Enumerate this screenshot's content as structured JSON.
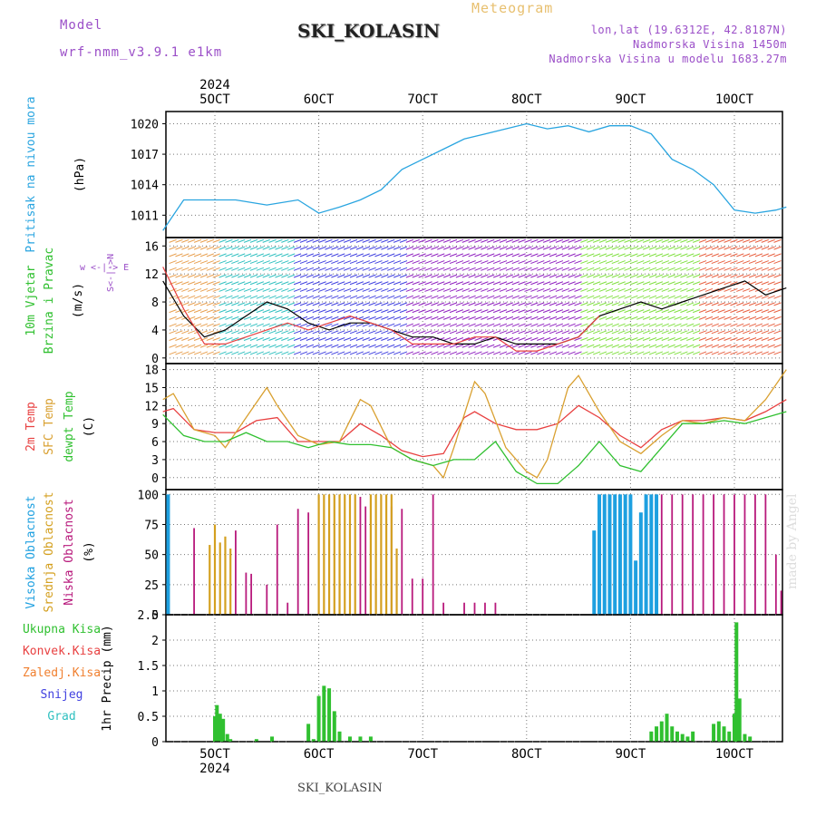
{
  "header": {
    "model_label": "Model",
    "model_value": "wrf-nmm_v3.9.1 e1km",
    "title": "Meteogram",
    "station": "SKI_KOLASIN",
    "lonlat": "lon,lat (19.6312E, 42.8187N)",
    "altitude": "Nadmorska Visina 1450m",
    "model_altitude": "Nadmorska Visina u modelu 1683.27m"
  },
  "footer": {
    "station": "SKI_KOLASIN",
    "credit": "made by Angel"
  },
  "colors": {
    "pressure": "#2aa5e0",
    "speed": "#000000",
    "t2m": "#e84040",
    "sfc": "#d9a030",
    "dewpt": "#30c030",
    "high": "#1ea0e0",
    "mid": "#d4a020",
    "low": "#b81a7c",
    "precip": "#30c030",
    "conv": "#e84040",
    "frz": "#f08030",
    "snow": "#4040e0",
    "hail": "#30c0c0"
  },
  "chart_data": {
    "type": "line",
    "x_dates": [
      "5OCT",
      "6OCT",
      "7OCT",
      "8OCT",
      "9OCT",
      "10OCT"
    ],
    "year_label": "2024",
    "panels": [
      {
        "id": "pressure",
        "ylabels": [
          {
            "text": "Pritisak na nivou mora",
            "color": "#2aa5e0"
          },
          {
            "text": "(hPa)",
            "color": "#000000"
          }
        ],
        "ylim": [
          1008.8,
          1021.2
        ],
        "ticks": [
          1011,
          1014,
          1017,
          1020
        ],
        "series": [
          {
            "color": "#2aa5e0",
            "x": [
              4.5,
              4.7,
              5.0,
              5.2,
              5.5,
              5.8,
              6.0,
              6.2,
              6.4,
              6.6,
              6.8,
              7.0,
              7.2,
              7.4,
              7.6,
              7.8,
              8.0,
              8.2,
              8.4,
              8.6,
              8.8,
              9.0,
              9.2,
              9.4,
              9.6,
              9.8,
              10.0,
              10.2,
              10.4,
              10.5
            ],
            "y": [
              1009.5,
              1012.5,
              1012.5,
              1012.5,
              1012,
              1012.5,
              1011.2,
              1011.8,
              1012.5,
              1013.5,
              1015.5,
              1016.5,
              1017.5,
              1018.5,
              1019,
              1019.5,
              1020,
              1019.5,
              1019.8,
              1019.2,
              1019.8,
              1019.8,
              1019,
              1016.5,
              1015.5,
              1014,
              1011.5,
              1011.2,
              1011.5,
              1011.8
            ]
          }
        ]
      },
      {
        "id": "wind",
        "ylabels": [
          {
            "text": "10m Vjetar",
            "color": "#30c030"
          },
          {
            "text": "Brzina i Pravac",
            "color": "#30c030"
          },
          {
            "text": "(m/s)",
            "color": "#000000"
          }
        ],
        "compass": "w <-|-> E",
        "compass_ns": "S<-|->N",
        "ylim": [
          -0.8,
          17.2
        ],
        "ticks": [
          0,
          4,
          8,
          12,
          16
        ],
        "series": [
          {
            "color": "#000000",
            "x": [
              4.5,
              4.7,
              4.9,
              5.1,
              5.3,
              5.5,
              5.7,
              5.9,
              6.1,
              6.3,
              6.5,
              6.7,
              6.9,
              7.1,
              7.3,
              7.5,
              7.7,
              7.9,
              8.1,
              8.3,
              8.5,
              8.7,
              8.9,
              9.1,
              9.3,
              9.5,
              9.7,
              9.9,
              10.1,
              10.3,
              10.5
            ],
            "y": [
              11,
              6,
              3,
              4,
              6,
              8,
              7,
              5,
              4,
              5,
              5,
              4,
              3,
              3,
              2,
              2,
              3,
              2,
              2,
              2,
              3,
              6,
              7,
              8,
              7,
              8,
              9,
              10,
              11,
              9,
              10
            ]
          },
          {
            "color": "#e84040",
            "x": [
              4.5,
              4.7,
              4.9,
              5.1,
              5.3,
              5.5,
              5.7,
              5.9,
              6.1,
              6.3,
              6.5,
              6.7,
              6.9,
              7.1,
              7.3,
              7.5,
              7.7,
              7.9,
              8.1,
              8.3,
              8.5,
              8.7
            ],
            "y": [
              13,
              7,
              2,
              2,
              3,
              4,
              5,
              4,
              5,
              6,
              5,
              4,
              2,
              2,
              2,
              3,
              3,
              1,
              1,
              2,
              3,
              6
            ]
          }
        ]
      },
      {
        "id": "temperature",
        "ylabels": [
          {
            "text": "2m Temp",
            "color": "#e84040"
          },
          {
            "text": "SFC Temp",
            "color": "#d9a030"
          },
          {
            "text": "dewpt Temp",
            "color": "#30c030"
          },
          {
            "text": "(C)",
            "color": "#000000"
          }
        ],
        "ylim": [
          -2,
          19
        ],
        "ticks": [
          0,
          3,
          6,
          9,
          12,
          15,
          18
        ],
        "series": [
          {
            "name": "2m Temp",
            "color": "#e84040",
            "x": [
              4.5,
              4.6,
              4.8,
              5.0,
              5.2,
              5.4,
              5.6,
              5.8,
              6.0,
              6.2,
              6.4,
              6.6,
              6.8,
              7.0,
              7.2,
              7.4,
              7.5,
              7.7,
              7.9,
              8.1,
              8.3,
              8.5,
              8.7,
              8.9,
              9.1,
              9.3,
              9.5,
              9.7,
              9.9,
              10.1,
              10.3,
              10.5
            ],
            "y": [
              11,
              11.5,
              8,
              7.5,
              7.5,
              9.5,
              10,
              6,
              6,
              6,
              9,
              7,
              4.5,
              3.5,
              4,
              10,
              11,
              9,
              8,
              8,
              9,
              12,
              10,
              7,
              5,
              8,
              9.5,
              9.5,
              10,
              9.5,
              11,
              13
            ]
          },
          {
            "name": "SFC Temp",
            "color": "#d9a030",
            "x": [
              4.5,
              4.6,
              4.8,
              5.0,
              5.1,
              5.3,
              5.5,
              5.6,
              5.8,
              6.0,
              6.2,
              6.4,
              6.5,
              6.7,
              6.9,
              7.1,
              7.2,
              7.3,
              7.5,
              7.6,
              7.8,
              8.0,
              8.1,
              8.2,
              8.4,
              8.5,
              8.7,
              8.9,
              9.1,
              9.3,
              9.5,
              9.7,
              9.9,
              10.1,
              10.3,
              10.5
            ],
            "y": [
              13,
              14,
              8,
              7,
              5,
              10,
              15,
              12,
              7,
              5.5,
              6,
              13,
              12,
              5,
              3,
              2,
              0,
              5,
              16,
              14,
              5,
              1,
              0,
              3,
              15,
              17,
              11,
              6,
              4,
              7,
              9.5,
              9,
              10,
              9.5,
              13,
              18
            ]
          },
          {
            "name": "dewpt Temp",
            "color": "#30c030",
            "x": [
              4.5,
              4.7,
              4.9,
              5.1,
              5.3,
              5.5,
              5.7,
              5.9,
              6.1,
              6.3,
              6.5,
              6.7,
              6.9,
              7.1,
              7.3,
              7.5,
              7.7,
              7.9,
              8.1,
              8.3,
              8.5,
              8.7,
              8.9,
              9.1,
              9.3,
              9.5,
              9.7,
              9.9,
              10.1,
              10.3,
              10.5
            ],
            "y": [
              10.5,
              7,
              6,
              6,
              7.5,
              6,
              6,
              5,
              6,
              5.5,
              5.5,
              5,
              3,
              2,
              3,
              3,
              6,
              1,
              -1,
              -1,
              2,
              6,
              2,
              1,
              5,
              9,
              9,
              9.5,
              9,
              10,
              11
            ]
          }
        ]
      },
      {
        "id": "cloud",
        "ylabels": [
          {
            "text": "Visoka Oblacnost",
            "color": "#1ea0e0"
          },
          {
            "text": "Srednja Oblacnost",
            "color": "#d4a020"
          },
          {
            "text": "Niska Oblacnost",
            "color": "#b81a7c"
          },
          {
            "text": "(%)",
            "color": "#000000"
          }
        ],
        "ylim": [
          0,
          104
        ],
        "ticks": [
          0,
          25,
          50,
          75,
          100
        ],
        "high": {
          "x": [
            4.55,
            8.65,
            8.7,
            8.75,
            8.8,
            8.85,
            8.9,
            8.95,
            9.0,
            9.05,
            9.1,
            9.15,
            9.2,
            9.25
          ],
          "y": [
            100,
            70,
            100,
            100,
            100,
            100,
            100,
            100,
            100,
            45,
            85,
            100,
            100,
            100
          ]
        },
        "mid": {
          "x": [
            4.95,
            5.0,
            5.05,
            5.1,
            5.15,
            6.0,
            6.05,
            6.1,
            6.15,
            6.2,
            6.25,
            6.3,
            6.35,
            6.5,
            6.55,
            6.6,
            6.65,
            6.7,
            6.75
          ],
          "y": [
            58,
            75,
            60,
            65,
            55,
            100,
            100,
            100,
            100,
            100,
            100,
            100,
            100,
            100,
            100,
            100,
            100,
            100,
            55
          ]
        },
        "low": {
          "x": [
            4.8,
            5.2,
            5.3,
            5.35,
            5.5,
            5.6,
            5.7,
            5.8,
            5.9,
            6.4,
            6.45,
            6.55,
            6.7,
            6.8,
            6.9,
            7.0,
            7.1,
            7.2,
            7.4,
            7.5,
            7.6,
            7.7,
            9.3,
            9.4,
            9.5,
            9.6,
            9.7,
            9.8,
            9.9,
            10.0,
            10.1,
            10.2,
            10.3,
            10.4,
            10.45
          ],
          "y": [
            72,
            70,
            35,
            34,
            25,
            75,
            10,
            88,
            85,
            98,
            90,
            30,
            90,
            88,
            30,
            30,
            100,
            10,
            10,
            10,
            10,
            10,
            100,
            100,
            100,
            100,
            100,
            100,
            100,
            100,
            100,
            100,
            100,
            50,
            20
          ]
        }
      },
      {
        "id": "precip",
        "ylabels": [
          {
            "text": "1hr Precip (mm)",
            "color": "#000000"
          }
        ],
        "legend": [
          {
            "text": "Ukupna Kisa",
            "color": "#30c030"
          },
          {
            "text": "Konvek.Kisa",
            "color": "#e84040"
          },
          {
            "text": "Zaledj.Kisa",
            "color": "#f08030"
          },
          {
            "text": "Snijeg",
            "color": "#4040e0"
          },
          {
            "text": "Grad",
            "color": "#30c0c0"
          }
        ],
        "ylim": [
          0,
          2.5
        ],
        "ticks": [
          0,
          0.5,
          1,
          1.5,
          2,
          2.5
        ],
        "ticklabels": [
          "0",
          "0.5",
          "1",
          "1.5",
          "2",
          "2.5"
        ],
        "bars": {
          "x": [
            5.0,
            5.02,
            5.05,
            5.08,
            5.12,
            5.15,
            5.4,
            5.55,
            5.9,
            5.95,
            6.0,
            6.05,
            6.1,
            6.15,
            6.2,
            6.3,
            6.4,
            6.5,
            9.2,
            9.25,
            9.3,
            9.35,
            9.4,
            9.45,
            9.5,
            9.55,
            9.6,
            9.8,
            9.85,
            9.9,
            9.95,
            10.0,
            10.02,
            10.05,
            10.1,
            10.15
          ],
          "y": [
            0.5,
            0.72,
            0.55,
            0.45,
            0.15,
            0.05,
            0.05,
            0.1,
            0.35,
            0.05,
            0.9,
            1.1,
            1.05,
            0.6,
            0.2,
            0.1,
            0.1,
            0.1,
            0.2,
            0.3,
            0.4,
            0.55,
            0.3,
            0.2,
            0.15,
            0.1,
            0.2,
            0.35,
            0.4,
            0.3,
            0.2,
            0.55,
            2.35,
            0.85,
            0.15,
            0.1
          ]
        }
      }
    ]
  }
}
